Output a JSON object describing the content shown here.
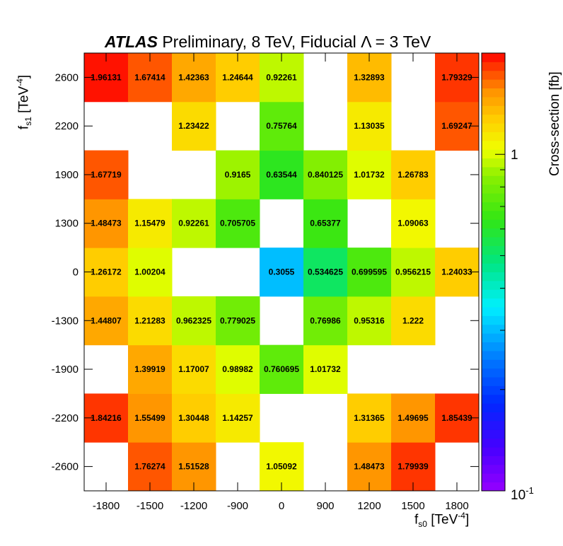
{
  "title": {
    "experiment": "ATLAS",
    "text": "Preliminary, 8 TeV, Fiducial Λ = 3 TeV"
  },
  "axes": {
    "x_label_main": "f",
    "x_label_sub": "s0",
    "x_label_unit": " [TeV",
    "x_label_exp": "-4",
    "x_label_close": "]",
    "y_label_main": "f",
    "y_label_sub": "s1",
    "y_label_unit": " [TeV",
    "y_label_exp": "-4",
    "y_label_close": "]",
    "z_label": "Cross-section [fb]",
    "z_tick_one": "1",
    "z_tick_min_base": "10",
    "z_tick_min_exp": "-1"
  },
  "chart_data": {
    "type": "heatmap",
    "title": "ATLAS Preliminary, 8 TeV, Fiducial Λ = 3 TeV",
    "xlabel": "f_s0 [TeV^-4]",
    "ylabel": "f_s1 [TeV^-4]",
    "zlabel": "Cross-section [fb]",
    "z_scale": "log",
    "zlim": [
      0.1,
      2.0
    ],
    "x": [
      "-1800",
      "-1500",
      "-1200",
      "-900",
      "0",
      "900",
      "1200",
      "1500",
      "1800"
    ],
    "y": [
      "-2600",
      "-2200",
      "-1900",
      "-1300",
      "0",
      "1300",
      "1900",
      "2200",
      "2600"
    ],
    "values": [
      [
        null,
        "1.76274",
        "1.51528",
        null,
        "1.05092",
        null,
        "1.48473",
        "1.79939",
        null
      ],
      [
        "1.84216",
        "1.55499",
        "1.30448",
        "1.14257",
        null,
        null,
        "1.31365",
        "1.49695",
        "1.85439"
      ],
      [
        null,
        "1.39919",
        "1.17007",
        "0.98982",
        "0.760695",
        "1.01732",
        null,
        null,
        null
      ],
      [
        "1.44807",
        "1.21283",
        "0.962325",
        "0.779025",
        null,
        "0.76986",
        "0.95316",
        "1.222",
        null
      ],
      [
        "1.26172",
        "1.00204",
        null,
        null,
        "0.3055",
        "0.534625",
        "0.699595",
        "0.956215",
        "1.24033"
      ],
      [
        "1.48473",
        "1.15479",
        "0.92261",
        "0.705705",
        null,
        "0.65377",
        null,
        "1.09063",
        null
      ],
      [
        "1.67719",
        null,
        null,
        "0.9165",
        "0.63544",
        "0.840125",
        "1.01732",
        "1.26783",
        null
      ],
      [
        null,
        null,
        "1.23422",
        null,
        "0.75764",
        null,
        "1.13035",
        null,
        "1.69247"
      ],
      [
        "1.96131",
        "1.67414",
        "1.42363",
        "1.24644",
        "0.92261",
        null,
        "1.32893",
        null,
        "1.79329"
      ]
    ]
  }
}
